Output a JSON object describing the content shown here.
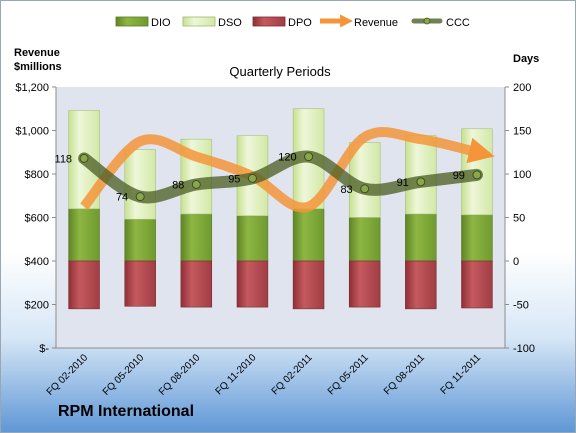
{
  "chart_data": {
    "type": "bar",
    "title": "Quarterly Periods",
    "company": "RPM International",
    "left_axis": {
      "label_line1": "Revenue",
      "label_line2": "$millions",
      "ticks": [
        "$1,200",
        "$1,000",
        "$800",
        "$600",
        "$400",
        "$200",
        "$-"
      ],
      "range": [
        0,
        1200
      ]
    },
    "right_axis": {
      "label": "Days",
      "ticks": [
        "200",
        "150",
        "100",
        "50",
        "0",
        "-50",
        "-100"
      ],
      "range": [
        -100,
        200
      ]
    },
    "categories": [
      "FQ 02-2010",
      "FQ 05-2010",
      "FQ 08-2010",
      "FQ 11-2010",
      "FQ 02-2011",
      "FQ 05-2011",
      "FQ 08-2011",
      "FQ 11-2011"
    ],
    "series": [
      {
        "name": "DIO",
        "values": [
          60,
          48,
          54,
          52,
          60,
          50,
          54,
          53
        ]
      },
      {
        "name": "DSO",
        "values": [
          113,
          80,
          86,
          92,
          115,
          86,
          90,
          99
        ]
      },
      {
        "name": "DPO",
        "values": [
          -55,
          -52,
          -53,
          -53,
          -55,
          -53,
          -55,
          -54
        ]
      },
      {
        "name": "Revenue",
        "values": [
          650,
          950,
          880,
          790,
          650,
          970,
          960,
          900
        ]
      },
      {
        "name": "CCC",
        "values": [
          118,
          74,
          88,
          95,
          120,
          83,
          91,
          99
        ]
      }
    ],
    "data_labels": [
      "118",
      "74",
      "88",
      "95",
      "120",
      "83",
      "91",
      "99"
    ],
    "colors": {
      "DIO": "#7ea437",
      "DSO": "#d9ecb2",
      "DPO": "#b54a50",
      "Revenue": "#f5953a",
      "CCC": "#4f6228",
      "plot_bg": "#dfe4ee"
    },
    "legend": "top",
    "grid": false
  }
}
